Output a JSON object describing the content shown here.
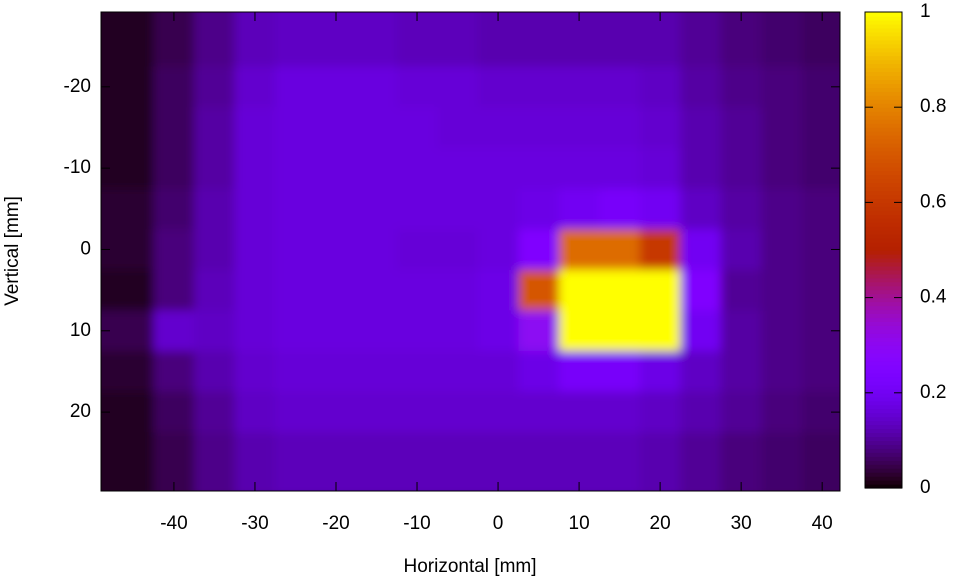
{
  "chart_data": {
    "type": "heatmap",
    "xlabel": "Horizontal [mm]",
    "ylabel": "Vertical [mm]",
    "x": [
      -45,
      -40,
      -35,
      -30,
      -25,
      -20,
      -15,
      -10,
      -5,
      0,
      5,
      10,
      15,
      20,
      25,
      30,
      35,
      40
    ],
    "y": [
      -25,
      -20,
      -15,
      -10,
      -5,
      0,
      5,
      10,
      15,
      20,
      25
    ],
    "z": [
      [
        0.02,
        0.05,
        0.09,
        0.13,
        0.14,
        0.14,
        0.14,
        0.13,
        0.13,
        0.12,
        0.12,
        0.12,
        0.12,
        0.12,
        0.1,
        0.08,
        0.07,
        0.06
      ],
      [
        0.02,
        0.06,
        0.1,
        0.15,
        0.17,
        0.17,
        0.17,
        0.16,
        0.16,
        0.15,
        0.15,
        0.15,
        0.15,
        0.14,
        0.11,
        0.09,
        0.08,
        0.07
      ],
      [
        0.02,
        0.06,
        0.11,
        0.16,
        0.17,
        0.17,
        0.17,
        0.17,
        0.16,
        0.16,
        0.16,
        0.16,
        0.16,
        0.15,
        0.12,
        0.1,
        0.08,
        0.07
      ],
      [
        0.02,
        0.06,
        0.11,
        0.16,
        0.17,
        0.17,
        0.17,
        0.17,
        0.17,
        0.17,
        0.17,
        0.17,
        0.17,
        0.16,
        0.12,
        0.1,
        0.08,
        0.07
      ],
      [
        0.03,
        0.07,
        0.12,
        0.16,
        0.17,
        0.17,
        0.17,
        0.17,
        0.17,
        0.17,
        0.18,
        0.2,
        0.22,
        0.2,
        0.14,
        0.11,
        0.09,
        0.08
      ],
      [
        0.03,
        0.08,
        0.12,
        0.16,
        0.17,
        0.17,
        0.17,
        0.16,
        0.16,
        0.17,
        0.25,
        0.75,
        0.75,
        0.6,
        0.2,
        0.12,
        0.09,
        0.08
      ],
      [
        0.02,
        0.08,
        0.13,
        0.16,
        0.17,
        0.17,
        0.17,
        0.17,
        0.17,
        0.18,
        0.7,
        1,
        1,
        1,
        0.25,
        0.1,
        0.09,
        0.08
      ],
      [
        0.05,
        0.15,
        0.14,
        0.16,
        0.17,
        0.17,
        0.17,
        0.17,
        0.17,
        0.18,
        0.3,
        1,
        1,
        1,
        0.2,
        0.11,
        0.09,
        0.08
      ],
      [
        0.03,
        0.08,
        0.12,
        0.15,
        0.16,
        0.16,
        0.16,
        0.16,
        0.16,
        0.16,
        0.18,
        0.22,
        0.22,
        0.18,
        0.14,
        0.11,
        0.09,
        0.08
      ],
      [
        0.02,
        0.06,
        0.1,
        0.14,
        0.15,
        0.15,
        0.15,
        0.15,
        0.15,
        0.15,
        0.15,
        0.15,
        0.15,
        0.14,
        0.12,
        0.1,
        0.08,
        0.07
      ],
      [
        0.02,
        0.05,
        0.09,
        0.12,
        0.13,
        0.13,
        0.13,
        0.13,
        0.13,
        0.13,
        0.13,
        0.13,
        0.13,
        0.12,
        0.1,
        0.08,
        0.07,
        0.06
      ]
    ],
    "xlim": [
      -49,
      42.2
    ],
    "xticks": [
      -40,
      -30,
      -20,
      -10,
      0,
      10,
      20,
      30,
      40
    ],
    "ylim": [
      -29.2,
      29.7
    ],
    "yticks": [
      -20,
      -10,
      0,
      10,
      20
    ],
    "y_inverted": true,
    "zlim": [
      0,
      1
    ],
    "zticks": [
      0,
      0.2,
      0.4,
      0.6,
      0.8,
      1
    ],
    "colormap": "gnuplot"
  }
}
